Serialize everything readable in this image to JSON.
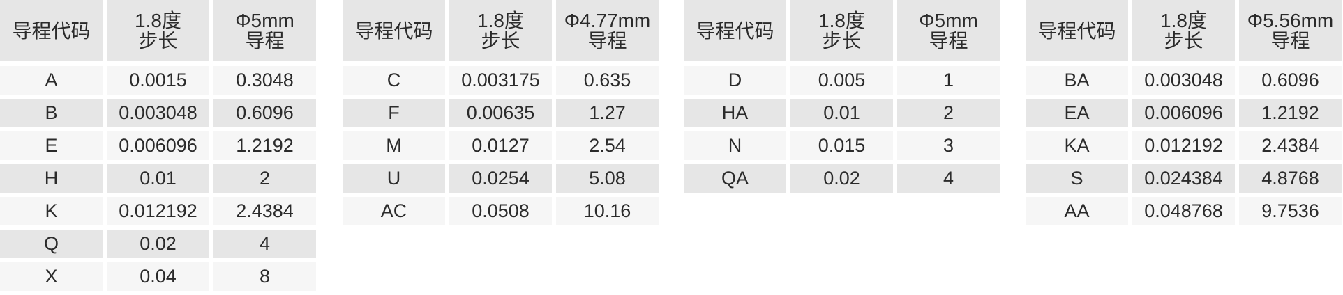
{
  "tables": [
    {
      "headers": [
        "导程代码",
        "1.8度\n步长",
        "Φ5mm\n导程"
      ],
      "rows": [
        [
          "A",
          "0.0015",
          "0.3048"
        ],
        [
          "B",
          "0.003048",
          "0.6096"
        ],
        [
          "E",
          "0.006096",
          "1.2192"
        ],
        [
          "H",
          "0.01",
          "2"
        ],
        [
          "K",
          "0.012192",
          "2.4384"
        ],
        [
          "Q",
          "0.02",
          "4"
        ],
        [
          "X",
          "0.04",
          "8"
        ]
      ]
    },
    {
      "headers": [
        "导程代码",
        "1.8度\n步长",
        "Φ4.77mm\n导程"
      ],
      "rows": [
        [
          "C",
          "0.003175",
          "0.635"
        ],
        [
          "F",
          "0.00635",
          "1.27"
        ],
        [
          "M",
          "0.0127",
          "2.54"
        ],
        [
          "U",
          "0.0254",
          "5.08"
        ],
        [
          "AC",
          "0.0508",
          "10.16"
        ]
      ]
    },
    {
      "headers": [
        "导程代码",
        "1.8度\n步长",
        "Φ5mm\n导程"
      ],
      "rows": [
        [
          "D",
          "0.005",
          "1"
        ],
        [
          "HA",
          "0.01",
          "2"
        ],
        [
          "N",
          "0.015",
          "3"
        ],
        [
          "QA",
          "0.02",
          "4"
        ]
      ]
    },
    {
      "headers": [
        "导程代码",
        "1.8度\n步长",
        "Φ5.56mm\n导程"
      ],
      "rows": [
        [
          "BA",
          "0.003048",
          "0.6096"
        ],
        [
          "EA",
          "0.006096",
          "1.2192"
        ],
        [
          "KA",
          "0.012192",
          "2.4384"
        ],
        [
          "S",
          "0.024384",
          "4.8768"
        ],
        [
          "AA",
          "0.048768",
          "9.7536"
        ]
      ]
    }
  ]
}
